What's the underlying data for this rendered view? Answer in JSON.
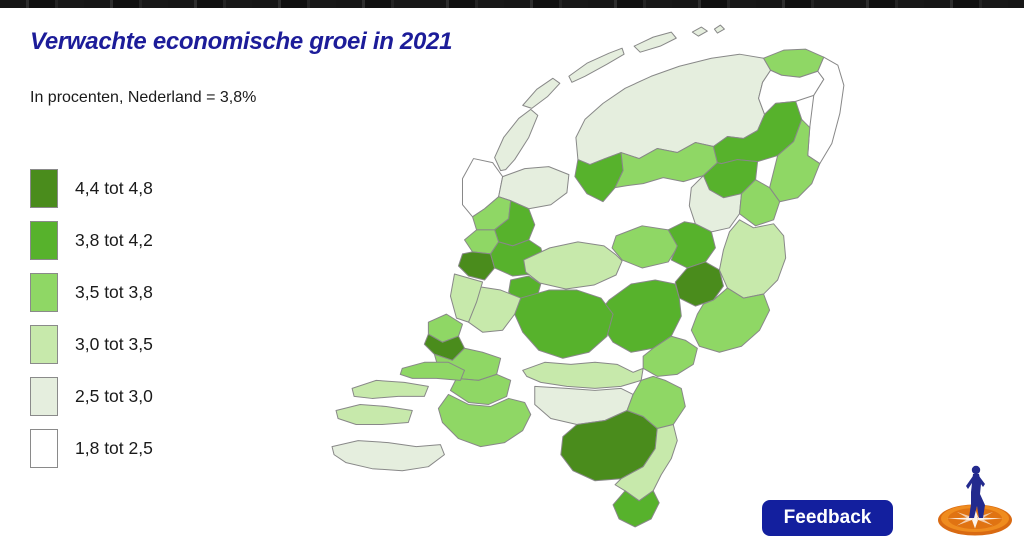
{
  "page": {
    "background": "#ffffff",
    "top_bar_color": "#161616"
  },
  "header": {
    "title": "Verwachte economische groei in 2021",
    "title_color": "#1c1c99",
    "subtitle": "In procenten, Nederland = 3,8%"
  },
  "feedback": {
    "label": "Feedback",
    "background": "#131f9e",
    "text_color": "#ffffff"
  },
  "logo": {
    "name": "compass-walking-figure-logo",
    "disc_color": "#e07312",
    "disc_highlight": "#f29030",
    "star_color": "#ffffff",
    "figure_color": "#232a8e"
  },
  "chart_data": {
    "type": "choropleth",
    "title": "Verwachte economische groei in 2021",
    "subtitle": "In procenten, Nederland = 3,8%",
    "unit": "procent",
    "netherlands_value": "3,8%",
    "legend_position": "left",
    "map_stroke": "#888888",
    "classes": [
      {
        "label": "4,4 tot 4,8",
        "color": "#4a8c1c"
      },
      {
        "label": "3,8 tot 4,2",
        "color": "#57b22c"
      },
      {
        "label": "3,5 tot 3,8",
        "color": "#8fd765"
      },
      {
        "label": "3,0 tot 3,5",
        "color": "#c7e9ab"
      },
      {
        "label": "2,5 tot 3,0",
        "color": "#e5eede"
      },
      {
        "label": "1,8 tot 2,5",
        "color": "#ffffff"
      }
    ],
    "regions": [
      {
        "id": "texel",
        "class": "2,5 tot 3,0"
      },
      {
        "id": "vlieland",
        "class": "2,5 tot 3,0"
      },
      {
        "id": "terschelling",
        "class": "2,5 tot 3,0"
      },
      {
        "id": "ameland",
        "class": "2,5 tot 3,0"
      },
      {
        "id": "schiermonnikoog-west",
        "class": "2,5 tot 3,0"
      },
      {
        "id": "schiermonnikoog-oost",
        "class": "2,5 tot 3,0"
      },
      {
        "id": "noord-friesland",
        "class": "2,5 tot 3,0"
      },
      {
        "id": "delfzijl",
        "class": "3,5 tot 3,8"
      },
      {
        "id": "overig-groningen",
        "class": "1,8 tot 2,5"
      },
      {
        "id": "oost-groningen",
        "class": "1,8 tot 2,5"
      },
      {
        "id": "zuidwest-friesland",
        "class": "3,8 tot 4,2"
      },
      {
        "id": "zuidoost-friesland",
        "class": "3,5 tot 3,8"
      },
      {
        "id": "noord-drenthe",
        "class": "3,8 tot 4,2"
      },
      {
        "id": "zuidoost-drenthe",
        "class": "3,5 tot 3,8"
      },
      {
        "id": "zuidwest-drenthe",
        "class": "3,8 tot 4,2"
      },
      {
        "id": "steenwijk",
        "class": "2,5 tot 3,0"
      },
      {
        "id": "hardenberg",
        "class": "3,5 tot 3,8"
      },
      {
        "id": "kop-van-noord-holland",
        "class": "1,8 tot 2,5"
      },
      {
        "id": "west-friesland",
        "class": "2,5 tot 3,0"
      },
      {
        "id": "alkmaar",
        "class": "3,5 tot 3,8"
      },
      {
        "id": "zaanstreek",
        "class": "3,8 tot 4,2"
      },
      {
        "id": "ijmond",
        "class": "3,5 tot 3,8"
      },
      {
        "id": "haarlem",
        "class": "4,4 tot 4,8"
      },
      {
        "id": "amsterdam",
        "class": "3,8 tot 4,2"
      },
      {
        "id": "gooi",
        "class": "3,8 tot 4,2"
      },
      {
        "id": "noordoostpolder",
        "class": "3,5 tot 3,8"
      },
      {
        "id": "flevoland",
        "class": "3,0 tot 3,5"
      },
      {
        "id": "zwolle",
        "class": "3,8 tot 4,2"
      },
      {
        "id": "deventer",
        "class": "4,4 tot 4,8"
      },
      {
        "id": "twente",
        "class": "3,0 tot 3,5"
      },
      {
        "id": "achterhoek",
        "class": "3,5 tot 3,8"
      },
      {
        "id": "veluwe",
        "class": "3,8 tot 4,2"
      },
      {
        "id": "arnhem-nijmegen",
        "class": "3,5 tot 3,8"
      },
      {
        "id": "utrecht",
        "class": "3,8 tot 4,2"
      },
      {
        "id": "oost-zuid-holland",
        "class": "3,0 tot 3,5"
      },
      {
        "id": "bollenstreek",
        "class": "3,0 tot 3,5"
      },
      {
        "id": "den-haag",
        "class": "3,5 tot 3,8"
      },
      {
        "id": "delft-westland",
        "class": "4,4 tot 4,8"
      },
      {
        "id": "rotterdam",
        "class": "3,5 tot 3,8"
      },
      {
        "id": "zuidoost-zuid-holland",
        "class": "3,5 tot 3,8"
      },
      {
        "id": "rivierenland",
        "class": "3,0 tot 3,5"
      },
      {
        "id": "den-bosch",
        "class": "2,5 tot 3,0"
      },
      {
        "id": "west-brabant",
        "class": "3,5 tot 3,8"
      },
      {
        "id": "eindhoven",
        "class": "4,4 tot 4,8"
      },
      {
        "id": "noord-limburg",
        "class": "3,5 tot 3,8"
      },
      {
        "id": "midden-limburg",
        "class": "3,0 tot 3,5"
      },
      {
        "id": "zuid-limburg",
        "class": "3,8 tot 4,2"
      },
      {
        "id": "voorne",
        "class": "3,5 tot 3,8"
      },
      {
        "id": "schouwen",
        "class": "3,0 tot 3,5"
      },
      {
        "id": "walcheren",
        "class": "3,0 tot 3,5"
      },
      {
        "id": "zeeuws-vlaanderen",
        "class": "2,5 tot 3,0"
      }
    ]
  }
}
